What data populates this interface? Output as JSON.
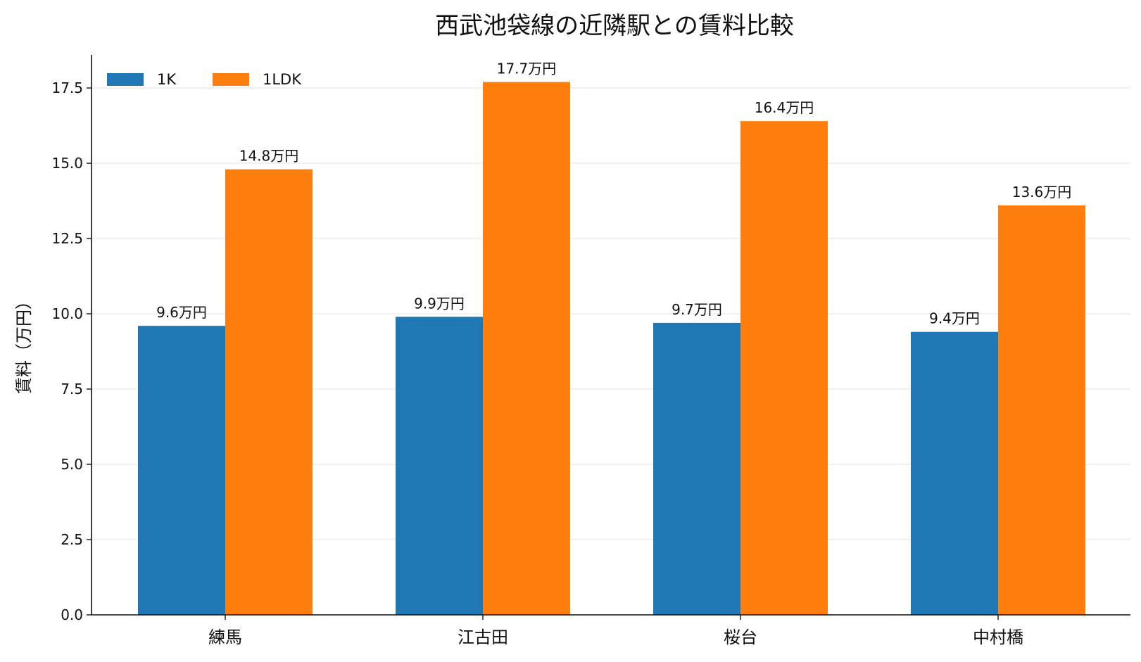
{
  "chart_data": {
    "type": "bar",
    "title": "西武池袋線の近隣駅との賃料比較",
    "xlabel": "",
    "ylabel": "賃料（万円）",
    "categories": [
      "練馬",
      "江古田",
      "桜台",
      "中村橋"
    ],
    "series": [
      {
        "name": "1K",
        "color": "#1f77b4",
        "values": [
          9.6,
          9.9,
          9.7,
          9.4
        ],
        "labels": [
          "9.6万円",
          "9.9万円",
          "9.7万円",
          "9.4万円"
        ]
      },
      {
        "name": "1LDK",
        "color": "#ff7f0e",
        "values": [
          14.8,
          17.7,
          16.4,
          13.6
        ],
        "labels": [
          "14.8万円",
          "17.7万円",
          "16.4万円",
          "13.6万円"
        ]
      }
    ],
    "ylim": [
      0,
      18.6
    ],
    "yticks": [
      "0.0",
      "2.5",
      "5.0",
      "7.5",
      "10.0",
      "12.5",
      "15.0",
      "17.5"
    ],
    "grid": "horizontal",
    "legend_position": "top-left"
  }
}
